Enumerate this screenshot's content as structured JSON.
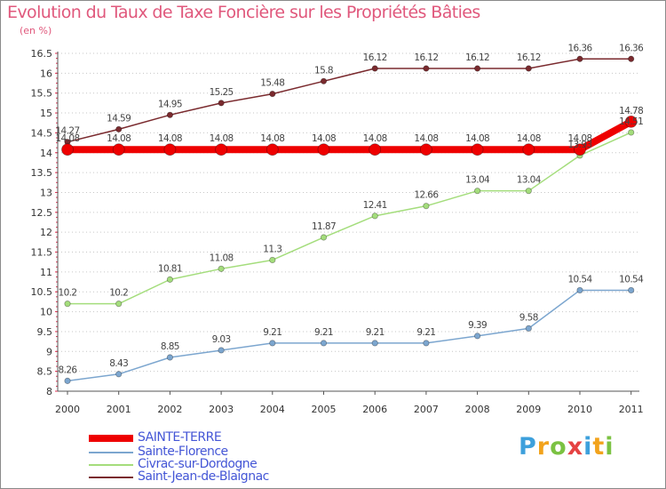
{
  "chart_data": {
    "type": "line",
    "title": "Evolution du Taux de Taxe Foncière sur les Propriétés Bâties",
    "unit_label": "(en %)",
    "x": [
      "2000",
      "2001",
      "2002",
      "2003",
      "2004",
      "2005",
      "2006",
      "2007",
      "2008",
      "2009",
      "2010",
      "2011"
    ],
    "y_ticks": [
      "8",
      "8.5",
      "9",
      "9.5",
      "10",
      "10.5",
      "11",
      "11.5",
      "12",
      "12.5",
      "13",
      "13.5",
      "14",
      "14.5",
      "15",
      "15.5",
      "16",
      "16.5"
    ],
    "ylim": [
      8,
      16.5
    ],
    "grid": "horizontal dotted",
    "series": [
      {
        "name": "Saint-Jean-de-Blaignac",
        "color": "#7a2a2e",
        "values": [
          14.27,
          14.59,
          14.95,
          15.25,
          15.48,
          15.8,
          16.12,
          16.12,
          16.12,
          16.12,
          16.36,
          16.36
        ],
        "labels": [
          "14.27",
          "14.59",
          "14.95",
          "15.25",
          "15.48",
          "15.8",
          "16.12",
          "16.12",
          "16.12",
          "16.12",
          "16.36",
          "16.36"
        ]
      },
      {
        "name": "Civrac-sur-Dordogne",
        "color": "#a4dd7c",
        "values": [
          10.2,
          10.2,
          10.81,
          11.08,
          11.3,
          11.87,
          12.41,
          12.66,
          13.04,
          13.04,
          13.93,
          14.51
        ],
        "labels": [
          "10.2",
          "10.2",
          "10.81",
          "11.08",
          "11.3",
          "11.87",
          "12.41",
          "12.66",
          "13.04",
          "13.04",
          "13.93",
          "14.51"
        ]
      },
      {
        "name": "Sainte-Florence",
        "color": "#7ca6cf",
        "values": [
          8.26,
          8.43,
          8.85,
          9.03,
          9.21,
          9.21,
          9.21,
          9.21,
          9.39,
          9.58,
          10.54,
          10.54
        ],
        "labels": [
          "8.26",
          "8.43",
          "8.85",
          "9.03",
          "9.21",
          "9.21",
          "9.21",
          "9.21",
          "9.39",
          "9.58",
          "10.54",
          "10.54"
        ]
      },
      {
        "name": "SAINTE-TERRE",
        "color": "#ee0000",
        "values": [
          14.08,
          14.08,
          14.08,
          14.08,
          14.08,
          14.08,
          14.08,
          14.08,
          14.08,
          14.08,
          14.08,
          14.78
        ],
        "labels": [
          "14.08",
          "14.08",
          "14.08",
          "14.08",
          "14.08",
          "14.08",
          "14.08",
          "14.08",
          "14.08",
          "14.08",
          "14.08",
          "14.78"
        ]
      }
    ],
    "legend": [
      "SAINTE-TERRE",
      "Sainte-Florence",
      "Civrac-sur-Dordogne",
      "Saint-Jean-de-Blaignac"
    ]
  },
  "logo": {
    "letters": [
      "P",
      "r",
      "o",
      "x",
      "i",
      "t",
      "i"
    ],
    "colors": [
      "#3da0dc",
      "#f2a31c",
      "#7bc242",
      "#e54343",
      "#3da0dc",
      "#f2a31c",
      "#7bc242"
    ]
  }
}
